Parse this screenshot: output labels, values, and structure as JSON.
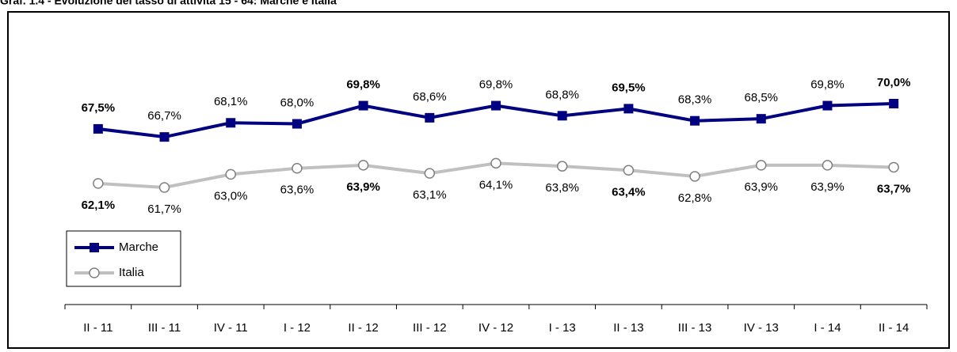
{
  "chart_data": {
    "type": "line",
    "title": "Graf. 1.4 - Evoluzione del tasso di attività 15 - 64: Marche e Italia",
    "categories": [
      "II - 11",
      "III - 11",
      "IV - 11",
      "I - 12",
      "II - 12",
      "III - 12",
      "IV - 12",
      "I - 13",
      "II - 13",
      "III - 13",
      "IV - 13",
      "I - 14",
      "II - 14"
    ],
    "series": [
      {
        "name": "Marche",
        "color": "#000080",
        "values": [
          67.5,
          66.7,
          68.1,
          68.0,
          69.8,
          68.6,
          69.8,
          68.8,
          69.5,
          68.3,
          68.5,
          69.8,
          70.0
        ],
        "value_labels": [
          "67,5%",
          "66,7%",
          "68,1%",
          "68,0%",
          "69,8%",
          "68,6%",
          "69,8%",
          "68,8%",
          "69,5%",
          "68,3%",
          "68,5%",
          "69,8%",
          "70,0%"
        ]
      },
      {
        "name": "Italia",
        "color": "#c0c0c0",
        "values": [
          62.1,
          61.7,
          63.0,
          63.6,
          63.9,
          63.1,
          64.1,
          63.8,
          63.4,
          62.8,
          63.9,
          63.9,
          63.7
        ],
        "value_labels": [
          "62,1%",
          "61,7%",
          "63,0%",
          "63,6%",
          "63,9%",
          "63,1%",
          "64,1%",
          "63,8%",
          "63,4%",
          "62,8%",
          "63,9%",
          "63,9%",
          "63,7%"
        ]
      }
    ],
    "legend": "lower left"
  }
}
